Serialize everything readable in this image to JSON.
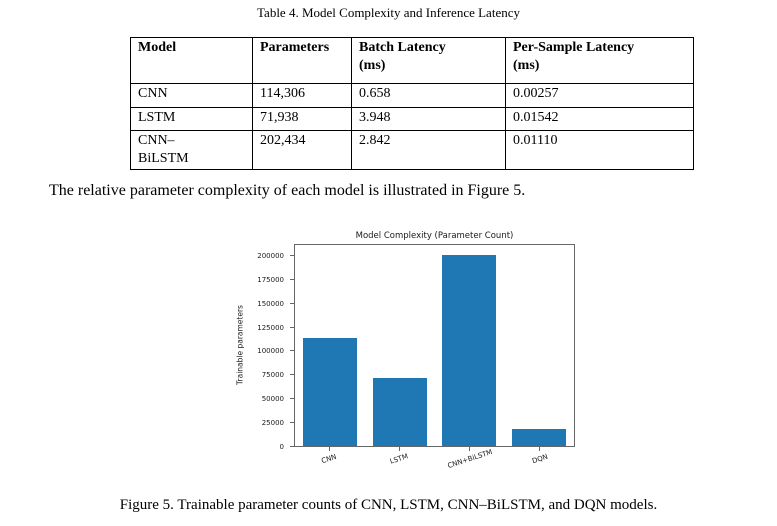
{
  "page": {
    "table_caption": "Table 4. Model Complexity and Inference Latency",
    "paragraph": "The relative parameter complexity of each model is illustrated in Figure 5.",
    "figure_caption": "Figure 5. Trainable parameter counts of CNN, LSTM, CNN–BiLSTM, and DQN models."
  },
  "table": {
    "headers": [
      "Model",
      "Parameters",
      "Batch Latency\n(ms)",
      "Per-Sample Latency\n(ms)"
    ],
    "rows": [
      {
        "model": "CNN",
        "parameters": "114,306",
        "batch_latency": "0.658",
        "per_sample_latency": "0.00257"
      },
      {
        "model": "LSTM",
        "parameters": "71,938",
        "batch_latency": "3.948",
        "per_sample_latency": "0.01542"
      },
      {
        "model": "CNN–\nBiLSTM",
        "parameters": "202,434",
        "batch_latency": "2.842",
        "per_sample_latency": "0.01110"
      }
    ]
  },
  "chart_data": {
    "type": "bar",
    "title": "Model Complexity (Parameter Count)",
    "xlabel": "",
    "ylabel": "Trainable parameters",
    "categories": [
      "CNN",
      "LSTM",
      "CNN+BiLSTM",
      "DQN"
    ],
    "values": [
      114306,
      71938,
      202434,
      18000
    ],
    "yticks": [
      0,
      25000,
      50000,
      75000,
      100000,
      125000,
      150000,
      175000,
      200000
    ],
    "ylim": [
      0,
      212500
    ],
    "grid": false,
    "legend": false,
    "bar_color": "#1f77b4"
  }
}
